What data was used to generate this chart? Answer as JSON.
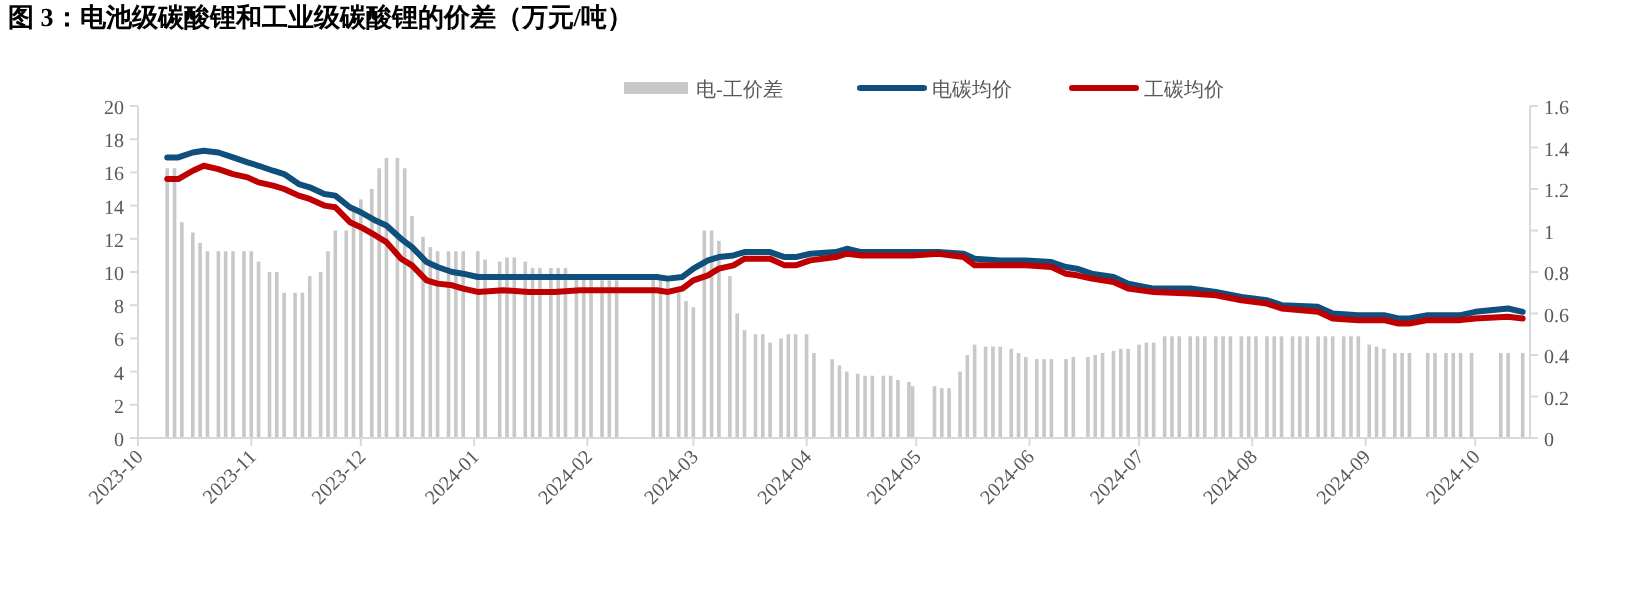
{
  "chart_data": {
    "type": "line",
    "title": "图 3：电池级碳酸锂和工业级碳酸锂的价差（万元/吨）",
    "xlim": [
      "2023-10-01",
      "2024-10-16"
    ],
    "xticks": [
      {
        "value": "2023-10-01",
        "label": "2023-10"
      },
      {
        "value": "2023-11-01",
        "label": "2023-11"
      },
      {
        "value": "2023-12-01",
        "label": "2023-12"
      },
      {
        "value": "2024-01-01",
        "label": "2024-01"
      },
      {
        "value": "2024-02-01",
        "label": "2024-02"
      },
      {
        "value": "2024-03-01",
        "label": "2024-03"
      },
      {
        "value": "2024-04-01",
        "label": "2024-04"
      },
      {
        "value": "2024-05-01",
        "label": "2024-05"
      },
      {
        "value": "2024-06-01",
        "label": "2024-06"
      },
      {
        "value": "2024-07-01",
        "label": "2024-07"
      },
      {
        "value": "2024-08-01",
        "label": "2024-08"
      },
      {
        "value": "2024-09-01",
        "label": "2024-09"
      },
      {
        "value": "2024-10-01",
        "label": "2024-10"
      }
    ],
    "ylim": [
      0,
      20
    ],
    "yticks": [
      0,
      2,
      4,
      6,
      8,
      10,
      12,
      14,
      16,
      18,
      20
    ],
    "y2lim": [
      0,
      1.6
    ],
    "y2ticks": [
      0,
      {
        "value": 0.2,
        "label": "0.2"
      },
      {
        "value": 0.4,
        "label": "0.4"
      },
      {
        "value": 0.6,
        "label": "0.6"
      },
      {
        "value": 0.8,
        "label": "0.8"
      },
      1,
      {
        "value": 1.2,
        "label": "1.2"
      },
      {
        "value": 1.4,
        "label": "1.4"
      },
      {
        "value": 1.6,
        "label": "1.6"
      }
    ],
    "legend": "top",
    "grid": false,
    "series": [
      {
        "name": "电-工价差",
        "type": "bar",
        "axis": "y2",
        "color": "#c8c8c8",
        "x": [
          "2023-10-09",
          "2023-10-11",
          "2023-10-13",
          "2023-10-16",
          "2023-10-18",
          "2023-10-20",
          "2023-10-23",
          "2023-10-25",
          "2023-10-27",
          "2023-10-30",
          "2023-11-01",
          "2023-11-03",
          "2023-11-06",
          "2023-11-08",
          "2023-11-10",
          "2023-11-13",
          "2023-11-15",
          "2023-11-17",
          "2023-11-20",
          "2023-11-22",
          "2023-11-24",
          "2023-11-27",
          "2023-11-29",
          "2023-12-01",
          "2023-12-04",
          "2023-12-06",
          "2023-12-08",
          "2023-12-11",
          "2023-12-13",
          "2023-12-15",
          "2023-12-18",
          "2023-12-20",
          "2023-12-22",
          "2023-12-25",
          "2023-12-27",
          "2023-12-29",
          "2024-01-02",
          "2024-01-04",
          "2024-01-08",
          "2024-01-10",
          "2024-01-12",
          "2024-01-15",
          "2024-01-17",
          "2024-01-19",
          "2024-01-22",
          "2024-01-24",
          "2024-01-26",
          "2024-01-29",
          "2024-01-31",
          "2024-02-02",
          "2024-02-05",
          "2024-02-07",
          "2024-02-09",
          "2024-02-19",
          "2024-02-21",
          "2024-02-23",
          "2024-02-26",
          "2024-02-28",
          "2024-03-01",
          "2024-03-04",
          "2024-03-06",
          "2024-03-08",
          "2024-03-11",
          "2024-03-13",
          "2024-03-15",
          "2024-03-18",
          "2024-03-20",
          "2024-03-22",
          "2024-03-25",
          "2024-03-27",
          "2024-03-29",
          "2024-04-01",
          "2024-04-03",
          "2024-04-08",
          "2024-04-10",
          "2024-04-12",
          "2024-04-15",
          "2024-04-17",
          "2024-04-19",
          "2024-04-22",
          "2024-04-24",
          "2024-04-26",
          "2024-04-29",
          "2024-04-30",
          "2024-05-06",
          "2024-05-08",
          "2024-05-10",
          "2024-05-13",
          "2024-05-15",
          "2024-05-17",
          "2024-05-20",
          "2024-05-22",
          "2024-05-24",
          "2024-05-27",
          "2024-05-29",
          "2024-05-31",
          "2024-06-03",
          "2024-06-05",
          "2024-06-07",
          "2024-06-11",
          "2024-06-13",
          "2024-06-17",
          "2024-06-19",
          "2024-06-21",
          "2024-06-24",
          "2024-06-26",
          "2024-06-28",
          "2024-07-01",
          "2024-07-03",
          "2024-07-05",
          "2024-07-08",
          "2024-07-10",
          "2024-07-12",
          "2024-07-15",
          "2024-07-17",
          "2024-07-19",
          "2024-07-22",
          "2024-07-24",
          "2024-07-26",
          "2024-07-29",
          "2024-07-31",
          "2024-08-02",
          "2024-08-05",
          "2024-08-07",
          "2024-08-09",
          "2024-08-12",
          "2024-08-14",
          "2024-08-16",
          "2024-08-19",
          "2024-08-21",
          "2024-08-23",
          "2024-08-26",
          "2024-08-28",
          "2024-08-30",
          "2024-09-02",
          "2024-09-04",
          "2024-09-06",
          "2024-09-09",
          "2024-09-11",
          "2024-09-13",
          "2024-09-18",
          "2024-09-20",
          "2024-09-23",
          "2024-09-25",
          "2024-09-27",
          "2024-09-30",
          "2024-10-08",
          "2024-10-10",
          "2024-10-14"
        ],
        "values": [
          1.3,
          1.3,
          1.04,
          0.99,
          0.94,
          0.9,
          0.9,
          0.9,
          0.9,
          0.9,
          0.9,
          0.85,
          0.8,
          0.8,
          0.7,
          0.7,
          0.7,
          0.78,
          0.8,
          0.9,
          1.0,
          1.0,
          1.1,
          1.15,
          1.2,
          1.3,
          1.35,
          1.35,
          1.3,
          1.07,
          0.97,
          0.92,
          0.9,
          0.9,
          0.9,
          0.9,
          0.9,
          0.86,
          0.85,
          0.87,
          0.87,
          0.85,
          0.82,
          0.82,
          0.82,
          0.82,
          0.82,
          0.78,
          0.78,
          0.78,
          0.76,
          0.76,
          0.76,
          0.77,
          0.77,
          0.77,
          0.7,
          0.66,
          0.63,
          1.0,
          1.0,
          0.95,
          0.78,
          0.6,
          0.52,
          0.5,
          0.5,
          0.46,
          0.48,
          0.5,
          0.5,
          0.5,
          0.41,
          0.38,
          0.35,
          0.32,
          0.31,
          0.3,
          0.3,
          0.3,
          0.3,
          0.28,
          0.27,
          0.25,
          0.25,
          0.24,
          0.24,
          0.32,
          0.4,
          0.45,
          0.44,
          0.44,
          0.44,
          0.43,
          0.41,
          0.39,
          0.38,
          0.38,
          0.38,
          0.38,
          0.39,
          0.39,
          0.4,
          0.41,
          0.42,
          0.43,
          0.43,
          0.45,
          0.46,
          0.46,
          0.49,
          0.49,
          0.49,
          0.49,
          0.49,
          0.49,
          0.49,
          0.49,
          0.49,
          0.49,
          0.49,
          0.49,
          0.49,
          0.49,
          0.49,
          0.49,
          0.49,
          0.49,
          0.49,
          0.49,
          0.49,
          0.49,
          0.49,
          0.49,
          0.45,
          0.44,
          0.43,
          0.41,
          0.41,
          0.41,
          0.41,
          0.41,
          0.41,
          0.41,
          0.41,
          0.41,
          0.41,
          0.41,
          0.41
        ]
      },
      {
        "name": "电碳均价",
        "color": "#0e4f7c",
        "x": [
          "2023-10-09",
          "2023-10-12",
          "2023-10-16",
          "2023-10-19",
          "2023-10-23",
          "2023-10-27",
          "2023-10-31",
          "2023-11-03",
          "2023-11-07",
          "2023-11-10",
          "2023-11-14",
          "2023-11-17",
          "2023-11-21",
          "2023-11-24",
          "2023-11-28",
          "2023-12-01",
          "2023-12-05",
          "2023-12-08",
          "2023-12-12",
          "2023-12-15",
          "2023-12-19",
          "2023-12-22",
          "2023-12-26",
          "2023-12-29",
          "2024-01-02",
          "2024-01-09",
          "2024-01-16",
          "2024-01-23",
          "2024-01-30",
          "2024-02-06",
          "2024-02-20",
          "2024-02-23",
          "2024-02-27",
          "2024-03-01",
          "2024-03-05",
          "2024-03-08",
          "2024-03-12",
          "2024-03-15",
          "2024-03-19",
          "2024-03-22",
          "2024-03-26",
          "2024-03-29",
          "2024-04-02",
          "2024-04-09",
          "2024-04-12",
          "2024-04-16",
          "2024-04-23",
          "2024-04-30",
          "2024-05-07",
          "2024-05-14",
          "2024-05-17",
          "2024-05-24",
          "2024-05-31",
          "2024-06-07",
          "2024-06-11",
          "2024-06-14",
          "2024-06-18",
          "2024-06-24",
          "2024-06-28",
          "2024-07-05",
          "2024-07-15",
          "2024-07-22",
          "2024-07-29",
          "2024-08-05",
          "2024-08-09",
          "2024-08-19",
          "2024-08-23",
          "2024-08-30",
          "2024-09-06",
          "2024-09-10",
          "2024-09-13",
          "2024-09-18",
          "2024-09-27",
          "2024-10-01",
          "2024-10-10",
          "2024-10-14"
        ],
        "values": [
          16.9,
          16.9,
          17.2,
          17.3,
          17.2,
          16.9,
          16.6,
          16.4,
          16.1,
          15.9,
          15.3,
          15.1,
          14.7,
          14.6,
          13.9,
          13.6,
          13.1,
          12.8,
          12.0,
          11.5,
          10.6,
          10.3,
          10.0,
          9.9,
          9.7,
          9.7,
          9.7,
          9.7,
          9.7,
          9.7,
          9.7,
          9.6,
          9.7,
          10.2,
          10.7,
          10.9,
          11.0,
          11.2,
          11.2,
          11.2,
          10.9,
          10.9,
          11.1,
          11.2,
          11.4,
          11.2,
          11.2,
          11.2,
          11.2,
          11.1,
          10.8,
          10.7,
          10.7,
          10.6,
          10.3,
          10.2,
          9.9,
          9.7,
          9.3,
          9.0,
          9.0,
          8.8,
          8.5,
          8.3,
          8.0,
          7.9,
          7.5,
          7.4,
          7.4,
          7.2,
          7.2,
          7.4,
          7.4,
          7.6,
          7.8,
          7.6
        ]
      },
      {
        "name": "工碳均价",
        "color": "#c00000",
        "x": [
          "2023-10-09",
          "2023-10-12",
          "2023-10-16",
          "2023-10-19",
          "2023-10-23",
          "2023-10-27",
          "2023-10-31",
          "2023-11-03",
          "2023-11-07",
          "2023-11-10",
          "2023-11-14",
          "2023-11-17",
          "2023-11-21",
          "2023-11-24",
          "2023-11-28",
          "2023-12-01",
          "2023-12-05",
          "2023-12-08",
          "2023-12-12",
          "2023-12-15",
          "2023-12-19",
          "2023-12-22",
          "2023-12-26",
          "2023-12-29",
          "2024-01-02",
          "2024-01-09",
          "2024-01-16",
          "2024-01-23",
          "2024-01-30",
          "2024-02-06",
          "2024-02-20",
          "2024-02-23",
          "2024-02-27",
          "2024-03-01",
          "2024-03-05",
          "2024-03-08",
          "2024-03-12",
          "2024-03-15",
          "2024-03-19",
          "2024-03-22",
          "2024-03-26",
          "2024-03-29",
          "2024-04-02",
          "2024-04-09",
          "2024-04-12",
          "2024-04-16",
          "2024-04-23",
          "2024-04-30",
          "2024-05-07",
          "2024-05-14",
          "2024-05-17",
          "2024-05-24",
          "2024-05-31",
          "2024-06-07",
          "2024-06-11",
          "2024-06-14",
          "2024-06-18",
          "2024-06-24",
          "2024-06-28",
          "2024-07-05",
          "2024-07-15",
          "2024-07-22",
          "2024-07-29",
          "2024-08-05",
          "2024-08-09",
          "2024-08-19",
          "2024-08-23",
          "2024-08-30",
          "2024-09-06",
          "2024-09-10",
          "2024-09-13",
          "2024-09-18",
          "2024-09-27",
          "2024-10-01",
          "2024-10-10",
          "2024-10-14"
        ],
        "values": [
          15.6,
          15.6,
          16.1,
          16.4,
          16.2,
          15.9,
          15.7,
          15.4,
          15.2,
          15.0,
          14.6,
          14.4,
          14.0,
          13.9,
          13.0,
          12.7,
          12.2,
          11.8,
          10.8,
          10.4,
          9.5,
          9.3,
          9.2,
          9.0,
          8.8,
          8.9,
          8.8,
          8.8,
          8.9,
          8.9,
          8.9,
          8.8,
          9.0,
          9.5,
          9.8,
          10.2,
          10.4,
          10.8,
          10.8,
          10.8,
          10.4,
          10.4,
          10.7,
          10.9,
          11.1,
          11.0,
          11.0,
          11.0,
          11.1,
          10.9,
          10.4,
          10.4,
          10.4,
          10.3,
          9.9,
          9.8,
          9.6,
          9.4,
          9.0,
          8.8,
          8.7,
          8.6,
          8.3,
          8.1,
          7.8,
          7.6,
          7.2,
          7.1,
          7.1,
          6.9,
          6.9,
          7.1,
          7.1,
          7.2,
          7.3,
          7.2
        ]
      }
    ]
  }
}
